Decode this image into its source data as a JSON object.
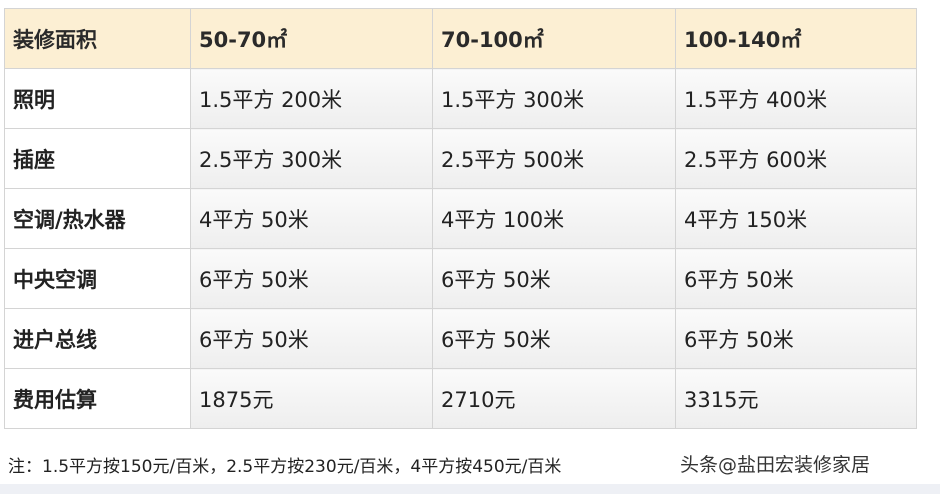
{
  "table": {
    "headers": [
      "装修面积",
      "50-70㎡",
      "70-100㎡",
      "100-140㎡"
    ],
    "rows": [
      {
        "label": "照明",
        "values": [
          "1.5平方 200米",
          "1.5平方 300米",
          "1.5平方 400米"
        ]
      },
      {
        "label": "插座",
        "values": [
          "2.5平方 300米",
          "2.5平方 500米",
          "2.5平方 600米"
        ]
      },
      {
        "label": "空调/热水器",
        "values": [
          "4平方 50米",
          "4平方 100米",
          "4平方 150米"
        ]
      },
      {
        "label": "中央空调",
        "values": [
          "6平方 50米",
          "6平方 50米",
          "6平方 50米"
        ]
      },
      {
        "label": "进户总线",
        "values": [
          "6平方 50米",
          "6平方 50米",
          "6平方 50米"
        ]
      },
      {
        "label": "费用估算",
        "values": [
          "1875元",
          "2710元",
          "3315元"
        ]
      }
    ]
  },
  "footer": {
    "note": "注：1.5平方按150元/百米，2.5平方按230元/百米，4平方按450元/百米"
  },
  "watermark": "头条@盐田宏装修家居",
  "colors": {
    "header_bg": "#fcefd3",
    "border": "#d4d4d4"
  }
}
